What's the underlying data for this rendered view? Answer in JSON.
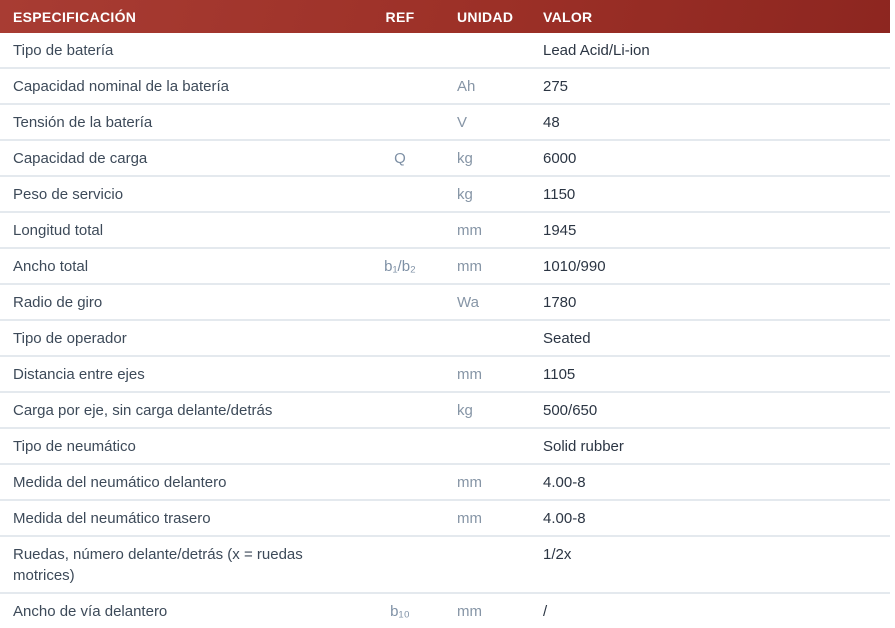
{
  "table": {
    "headers": {
      "spec": "ESPECIFICACIÓN",
      "ref": "REF",
      "unit": "UNIDAD",
      "value": "VALOR"
    },
    "rows": [
      {
        "spec": "Tipo de batería",
        "ref": "",
        "unit": "",
        "value": "Lead Acid/Li-ion"
      },
      {
        "spec": "Capacidad nominal de la batería",
        "ref": "",
        "unit": "Ah",
        "value": "275"
      },
      {
        "spec": "Tensión de la batería",
        "ref": "",
        "unit": "V",
        "value": "48"
      },
      {
        "spec": "Capacidad de carga",
        "ref": "Q",
        "unit": "kg",
        "value": "6000"
      },
      {
        "spec": "Peso de servicio",
        "ref": "",
        "unit": "kg",
        "value": "1150"
      },
      {
        "spec": "Longitud total",
        "ref": "",
        "unit": "mm",
        "value": "1945"
      },
      {
        "spec": "Ancho total",
        "ref": "b₁/b₂",
        "unit": "mm",
        "value": "1010/990"
      },
      {
        "spec": "Radio de giro",
        "ref": "",
        "unit": "Wa",
        "value": "1780"
      },
      {
        "spec": "Tipo de operador",
        "ref": "",
        "unit": "",
        "value": "Seated"
      },
      {
        "spec": "Distancia entre ejes",
        "ref": "",
        "unit": "mm",
        "value": "1105"
      },
      {
        "spec": "Carga por eje, sin carga delante/detrás",
        "ref": "",
        "unit": "kg",
        "value": "500/650"
      },
      {
        "spec": "Tipo de neumático",
        "ref": "",
        "unit": "",
        "value": "Solid rubber"
      },
      {
        "spec": "Medida del neumático delantero",
        "ref": "",
        "unit": "mm",
        "value": "4.00-8"
      },
      {
        "spec": "Medida del neumático trasero",
        "ref": "",
        "unit": "mm",
        "value": "4.00-8"
      },
      {
        "spec": "Ruedas, número delante/detrás (x = ruedas motrices)",
        "ref": "",
        "unit": "",
        "value": "1/2x"
      },
      {
        "spec": "Ancho de vía delantero",
        "ref": "b₁₀",
        "unit": "mm",
        "value": "/"
      }
    ]
  },
  "colors": {
    "header_bg_start": "#a83c33",
    "header_bg_end": "#8d2620",
    "header_text": "#ffffff",
    "row_divider": "#e4e9ee",
    "label_text": "#3d4a59",
    "ref_unit_text": "#8695a6",
    "value_text": "#2b3543"
  }
}
